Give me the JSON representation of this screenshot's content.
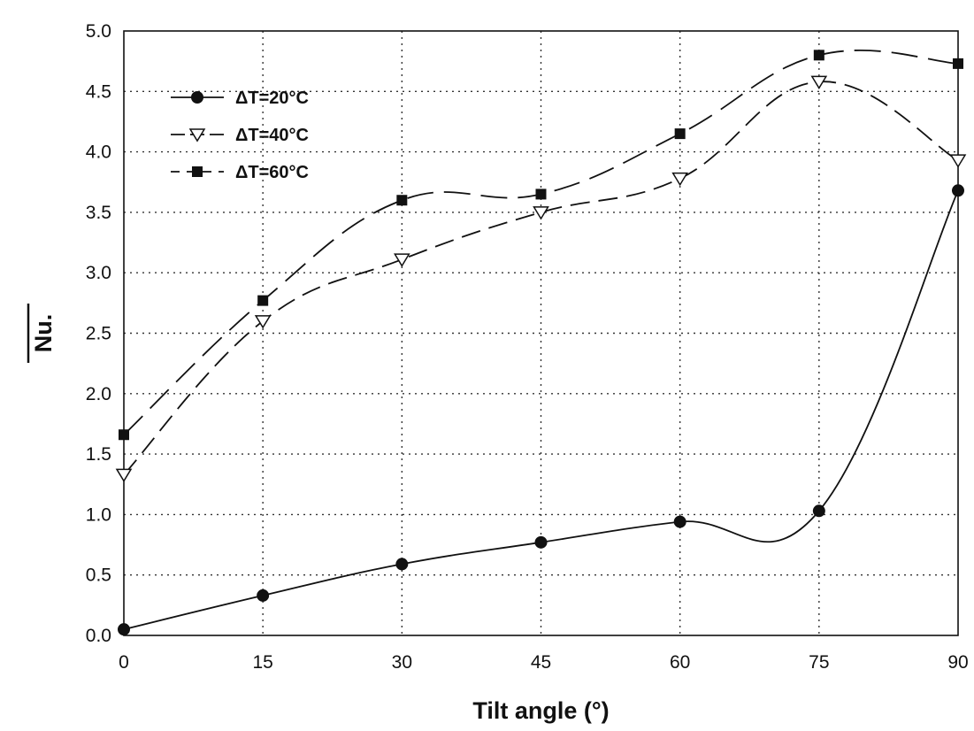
{
  "chart_data": {
    "type": "line",
    "x": [
      0,
      15,
      30,
      45,
      60,
      75,
      90
    ],
    "xlabel": "Tilt angle (°)",
    "ylabel": "Nu.",
    "xlim": [
      0,
      90
    ],
    "ylim": [
      0.0,
      5.0
    ],
    "xticks": [
      "0",
      "15",
      "30",
      "45",
      "60",
      "75",
      "90"
    ],
    "yticks": [
      "0.0",
      "0.5",
      "1.0",
      "1.5",
      "2.0",
      "2.5",
      "3.0",
      "3.5",
      "4.0",
      "4.5",
      "5.0"
    ],
    "grid": true,
    "legend_position": "top-left",
    "series": [
      {
        "name": "ΔT=20°C",
        "marker": "filled-circle",
        "line": "solid",
        "values": [
          0.05,
          0.33,
          0.59,
          0.77,
          0.94,
          1.03,
          3.68
        ]
      },
      {
        "name": "ΔT=40°C",
        "marker": "open-triangle-down",
        "line": "dashed",
        "values": [
          1.33,
          2.6,
          3.11,
          3.5,
          3.78,
          4.58,
          3.93
        ]
      },
      {
        "name": "ΔT=60°C",
        "marker": "filled-square",
        "line": "long-dashed",
        "values": [
          1.66,
          2.77,
          3.6,
          3.65,
          4.15,
          4.8,
          4.73
        ]
      }
    ]
  }
}
